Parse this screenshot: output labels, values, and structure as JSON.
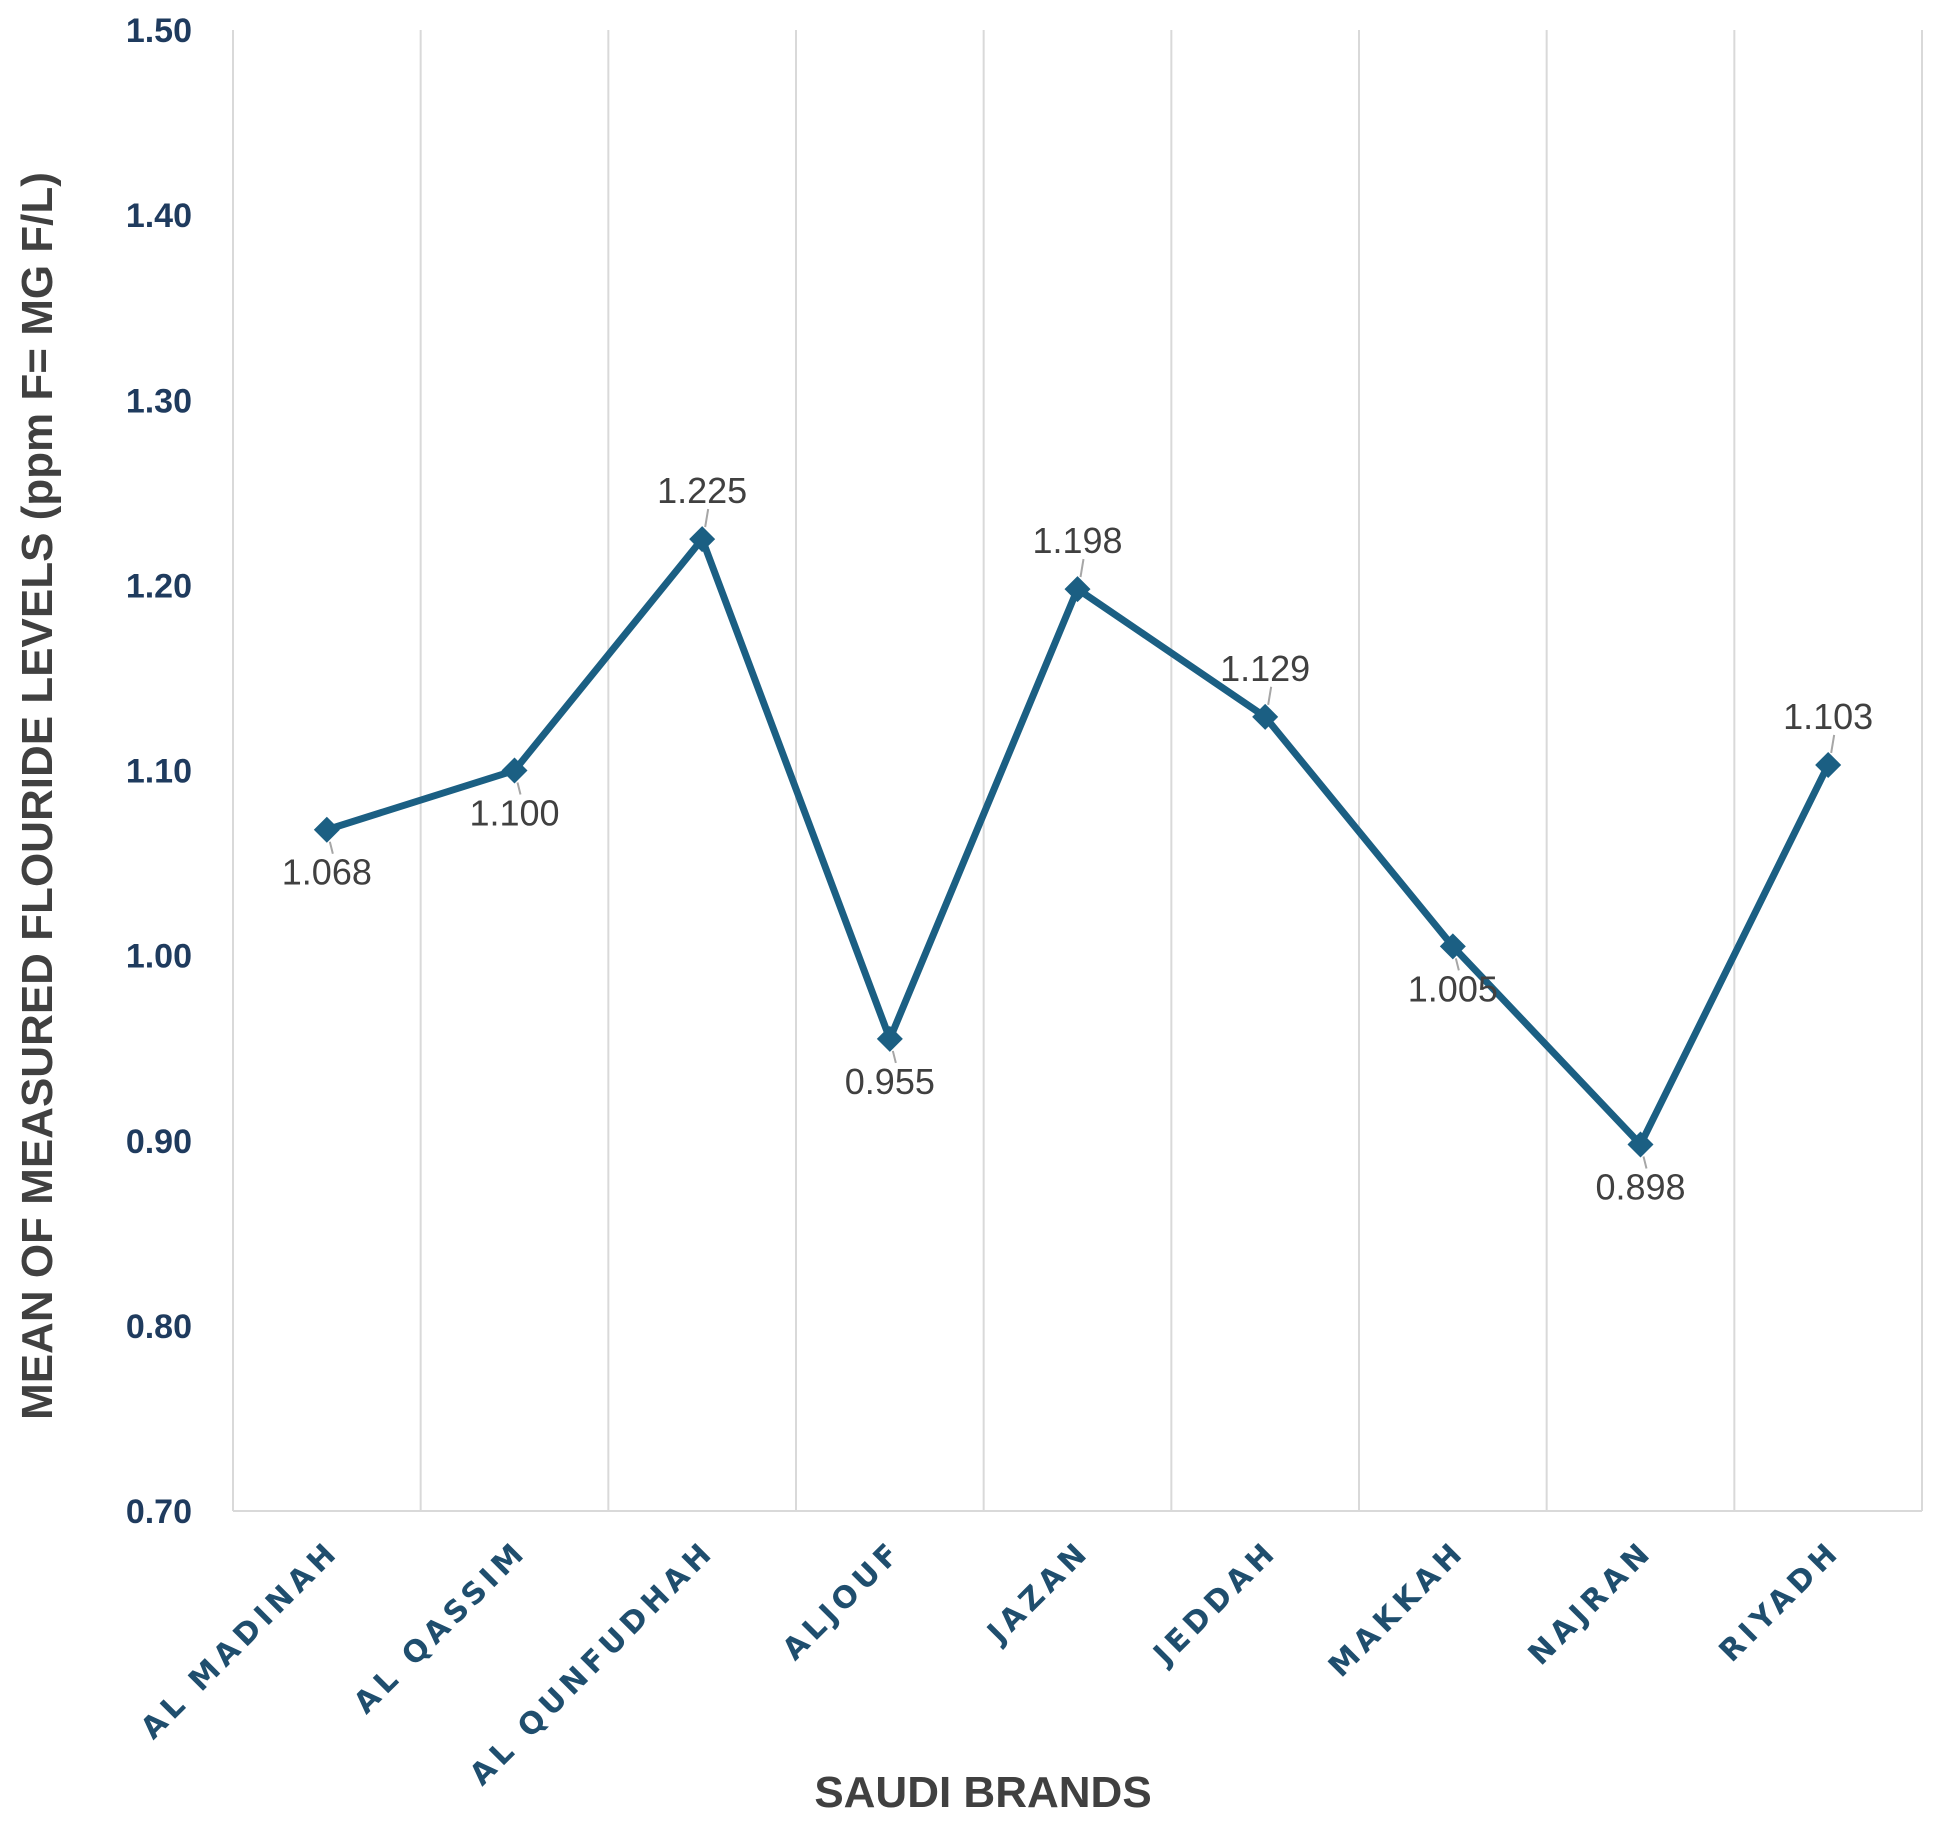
{
  "chart_data": {
    "type": "line",
    "title": "",
    "xlabel": "SAUDI BRANDS",
    "ylabel": "MEAN OF MEASURED FLOURIDE LEVELS (ppm  F= MG F/L)",
    "categories": [
      "AL MADINAH",
      "AL QASSIM",
      "AL QUNFUDHAH",
      "ALJOUF",
      "JAZAN",
      "JEDDAH",
      "MAKKAH",
      "NAJRAN",
      "RIYADH"
    ],
    "series": [
      {
        "values": [
          1.068,
          1.1,
          1.225,
          0.955,
          1.198,
          1.129,
          1.005,
          0.898,
          1.103
        ],
        "data_labels": [
          "1.068",
          "1.100",
          "1.225",
          "0.955",
          "1.198",
          "1.129",
          "1.005",
          "0.898",
          "1.103"
        ],
        "label_positions": [
          "below",
          "below",
          "above",
          "below",
          "above",
          "above",
          "below",
          "below",
          "above"
        ],
        "marker": "diamond"
      }
    ],
    "ylim": [
      0.7,
      1.5
    ],
    "yticks": [
      0.7,
      0.8,
      0.9,
      1.0,
      1.1,
      1.2,
      1.3,
      1.4,
      1.5
    ],
    "ytick_labels": [
      "0.70",
      "0.80",
      "0.90",
      "1.00",
      "1.10",
      "1.20",
      "1.30",
      "1.40",
      "1.50"
    ],
    "grid": "vertical",
    "legend": "none",
    "colors": {
      "line": "#1b5f83",
      "tick_text": "#1f3b5e",
      "category_text": "#1f4e6e",
      "axis_title": "#404040",
      "data_label_text": "#404040",
      "gridline": "#d9d9d9",
      "leader_line": "#a6a6a6"
    }
  }
}
